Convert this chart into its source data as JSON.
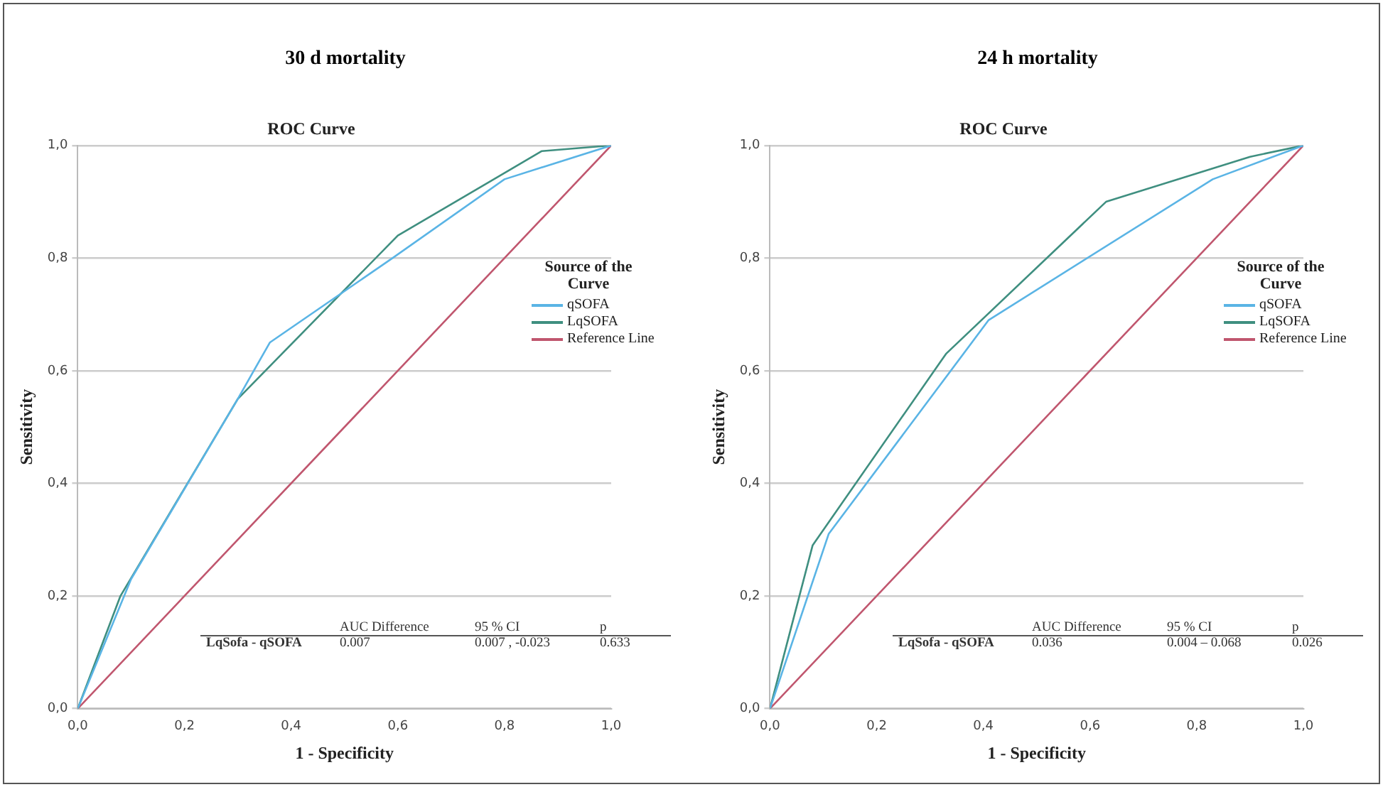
{
  "chart_data": [
    {
      "type": "line",
      "title": "30 d mortality",
      "subtitle": "ROC Curve",
      "xlabel": "1 - Specificity",
      "ylabel": "Sensitivity",
      "legend_title": "Source of the Curve",
      "series": [
        {
          "name": "qSOFA",
          "color": "#5ab4e5",
          "x": [
            0,
            0.1,
            0.3,
            0.36,
            0.59,
            0.8,
            1
          ],
          "values": [
            0,
            0.23,
            0.55,
            0.65,
            0.8,
            0.94,
            1
          ]
        },
        {
          "name": "LqSOFA",
          "color": "#3f8f80",
          "x": [
            0,
            0.08,
            0.3,
            0.6,
            0.87,
            1
          ],
          "values": [
            0,
            0.2,
            0.55,
            0.84,
            0.99,
            1
          ]
        },
        {
          "name": "Reference Line",
          "color": "#c0566e",
          "x": [
            0,
            1
          ],
          "values": [
            0,
            1
          ]
        }
      ],
      "xlim": [
        0,
        1
      ],
      "ylim": [
        0,
        1
      ],
      "xticks": [
        {
          "value": 0,
          "label": "0,0"
        },
        {
          "value": 0.2,
          "label": "0,2"
        },
        {
          "value": 0.4,
          "label": "0,4"
        },
        {
          "value": 0.6,
          "label": "0,6"
        },
        {
          "value": 0.8,
          "label": "0,8"
        },
        {
          "value": 1,
          "label": "1,0"
        }
      ],
      "yticks": [
        {
          "value": 0,
          "label": "0,0"
        },
        {
          "value": 0.2,
          "label": "0,2"
        },
        {
          "value": 0.4,
          "label": "0,4"
        },
        {
          "value": 0.6,
          "label": "0,6"
        },
        {
          "value": 0.8,
          "label": "0,8"
        },
        {
          "value": 1,
          "label": "1,0"
        }
      ],
      "annotations": [
        "AUC Difference",
        "95 % CI",
        "p",
        "LqSofa - qSOFA",
        "0.007",
        "0.007 , -0.023",
        "0.633"
      ],
      "grid": "y",
      "legend": "right",
      "marker": "none",
      "line_style": "solid"
    },
    {
      "type": "line",
      "title": "24 h mortality",
      "subtitle": "ROC Curve",
      "xlabel": "1 - Specificity",
      "ylabel": "Sensitivity",
      "legend_title": "Source of the Curve",
      "series": [
        {
          "name": "qSOFA",
          "color": "#5ab4e5",
          "x": [
            0,
            0.11,
            0.41,
            0.83,
            1
          ],
          "values": [
            0,
            0.31,
            0.69,
            0.94,
            1
          ]
        },
        {
          "name": "LqSOFA",
          "color": "#3f8f80",
          "x": [
            0,
            0.08,
            0.33,
            0.63,
            0.9,
            1
          ],
          "values": [
            0,
            0.29,
            0.63,
            0.9,
            0.98,
            1
          ]
        },
        {
          "name": "Reference Line",
          "color": "#c0566e",
          "x": [
            0,
            1
          ],
          "values": [
            0,
            1
          ]
        }
      ],
      "xlim": [
        0,
        1
      ],
      "ylim": [
        0,
        1
      ],
      "xticks": [
        {
          "value": 0,
          "label": "0,0"
        },
        {
          "value": 0.2,
          "label": "0,2"
        },
        {
          "value": 0.4,
          "label": "0,4"
        },
        {
          "value": 0.6,
          "label": "0,6"
        },
        {
          "value": 0.8,
          "label": "0,8"
        },
        {
          "value": 1,
          "label": "1,0"
        }
      ],
      "yticks": [
        {
          "value": 0,
          "label": "0,0"
        },
        {
          "value": 0.2,
          "label": "0,2"
        },
        {
          "value": 0.4,
          "label": "0,4"
        },
        {
          "value": 0.6,
          "label": "0,6"
        },
        {
          "value": 0.8,
          "label": "0,8"
        },
        {
          "value": 1,
          "label": "1,0"
        }
      ],
      "annotations": [
        "AUC Difference",
        "95 % CI",
        "p",
        "LqSofa - qSOFA",
        "0.036",
        "0.004 – 0.068",
        "0.026"
      ],
      "grid": "y",
      "legend": "right",
      "marker": "none",
      "line_style": "solid"
    }
  ]
}
